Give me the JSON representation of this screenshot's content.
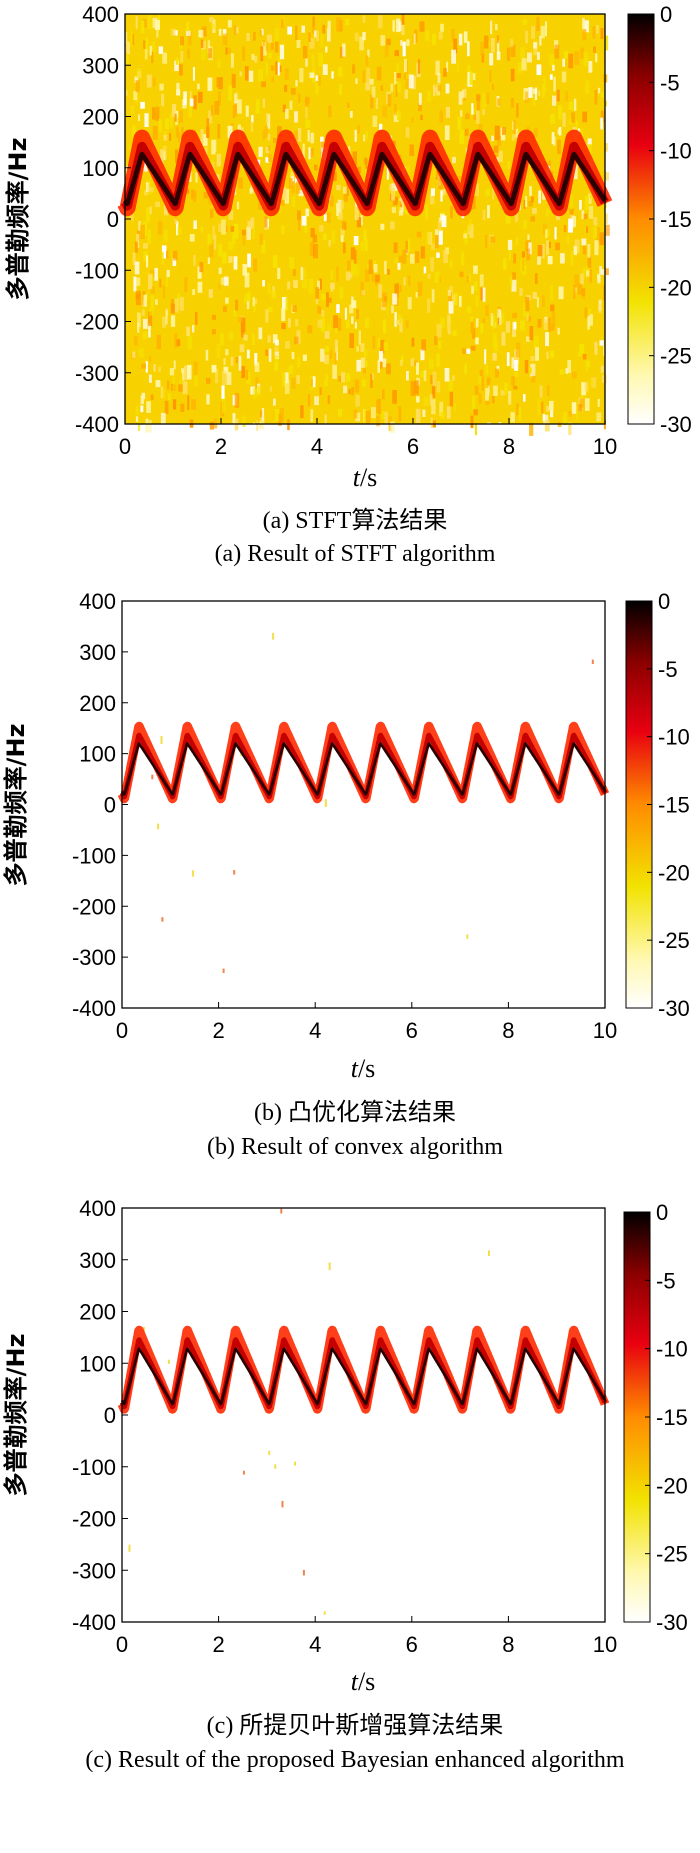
{
  "chart_data": [
    {
      "type": "heatmap",
      "panel": "a",
      "caption_zh": "(a) STFT算法结果",
      "caption_en": "(a) Result of STFT algorithm",
      "xlabel_var": "t",
      "xlabel_unit": "/s",
      "ylabel": "多普勒频率/Hz",
      "xlim": [
        0,
        10
      ],
      "ylim": [
        -400,
        400
      ],
      "xticks": [
        0,
        2,
        4,
        6,
        8,
        10
      ],
      "yticks": [
        400,
        300,
        200,
        100,
        0,
        -100,
        -200,
        -300,
        -400
      ],
      "colorbar_range": [
        -30,
        0
      ],
      "colorbar_ticks": [
        0,
        -5,
        -10,
        -15,
        -20,
        -25,
        -30
      ],
      "colormap": "hot-reversed",
      "background": "noisy",
      "signal": {
        "period_s": 1.0,
        "mean_hz": 100,
        "peak_hz": 160,
        "min_hz": 20,
        "cycles": 10
      }
    },
    {
      "type": "heatmap",
      "panel": "b",
      "caption_zh": "(b) 凸优化算法结果",
      "caption_en": "(b) Result of convex algorithm",
      "xlabel_var": "t",
      "xlabel_unit": "/s",
      "ylabel": "多普勒频率/Hz",
      "xlim": [
        0,
        10
      ],
      "ylim": [
        -400,
        400
      ],
      "xticks": [
        0,
        2,
        4,
        6,
        8,
        10
      ],
      "yticks": [
        400,
        300,
        200,
        100,
        0,
        -100,
        -200,
        -300,
        -400
      ],
      "colorbar_range": [
        -30,
        0
      ],
      "colorbar_ticks": [
        0,
        -5,
        -10,
        -15,
        -20,
        -25,
        -30
      ],
      "colormap": "hot-reversed",
      "background": "clean",
      "signal": {
        "period_s": 1.0,
        "mean_hz": 90,
        "peak_hz": 155,
        "min_hz": 10,
        "cycles": 10
      }
    },
    {
      "type": "heatmap",
      "panel": "c",
      "caption_zh": "(c) 所提贝叶斯增强算法结果",
      "caption_en": "(c) Result of the proposed Bayesian enhanced algorithm",
      "xlabel_var": "t",
      "xlabel_unit": "/s",
      "ylabel": "多普勒频率/Hz",
      "xlim": [
        0,
        10
      ],
      "ylim": [
        -400,
        400
      ],
      "xticks": [
        0,
        2,
        4,
        6,
        8,
        10
      ],
      "yticks": [
        400,
        300,
        200,
        100,
        0,
        -100,
        -200,
        -300,
        -400
      ],
      "colorbar_range": [
        -30,
        0
      ],
      "colorbar_ticks": [
        0,
        -5,
        -10,
        -15,
        -20,
        -25,
        -30
      ],
      "colormap": "hot-reversed",
      "background": "clean",
      "signal": {
        "period_s": 1.0,
        "mean_hz": 95,
        "peak_hz": 165,
        "min_hz": 10,
        "cycles": 10
      }
    }
  ]
}
